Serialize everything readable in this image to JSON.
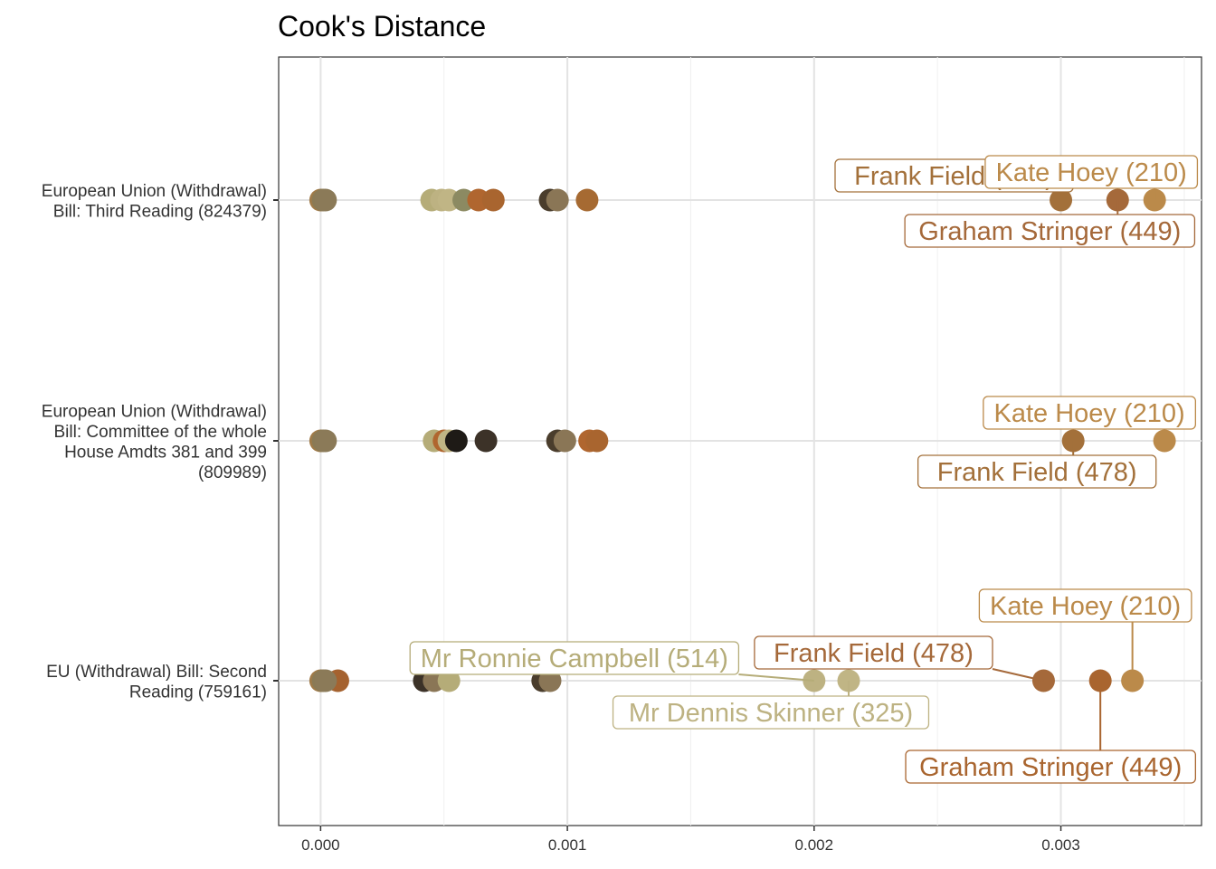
{
  "chart_data": {
    "type": "scatter",
    "title": "Cook's Distance",
    "xlabel": "",
    "ylabel": "",
    "xlim": [
      -0.00017,
      0.00357
    ],
    "x_ticks": [
      "0.000",
      "0.001",
      "0.002",
      "0.003"
    ],
    "x_tick_values": [
      0.0,
      0.001,
      0.002,
      0.003
    ],
    "grid": true,
    "legend": "none",
    "categories": [
      [
        "European Union (Withdrawal)",
        "Bill: Third Reading (824379)"
      ],
      [
        "European Union (Withdrawal)",
        "Bill: Committee of the whole",
        "House Amdts 381 and 399",
        "(809989)"
      ],
      [
        "EU (Withdrawal) Bill: Second",
        "Reading (759161)"
      ]
    ],
    "points": [
      [
        {
          "x": 0.0,
          "color": "#a07a48"
        },
        {
          "x": 1e-05,
          "color": "#8a7a55"
        },
        {
          "x": 2e-05,
          "color": "#8b7a58"
        },
        {
          "x": 0.00045,
          "color": "#b5ac78"
        },
        {
          "x": 0.00049,
          "color": "#bdb282"
        },
        {
          "x": 0.00052,
          "color": "#c0b585"
        },
        {
          "x": 0.00058,
          "color": "#8c8a62"
        },
        {
          "x": 0.00064,
          "color": "#b0662f"
        },
        {
          "x": 0.0007,
          "color": "#a9652f"
        },
        {
          "x": 0.00093,
          "color": "#4a3d2c"
        },
        {
          "x": 0.00096,
          "color": "#8a7656"
        },
        {
          "x": 0.00108,
          "color": "#a66a32"
        },
        {
          "x": 0.003,
          "color": "#a3703a"
        },
        {
          "x": 0.00323,
          "color": "#a5693a"
        },
        {
          "x": 0.00338,
          "color": "#bb8a4a"
        }
      ],
      [
        {
          "x": 0.0,
          "color": "#a07a48"
        },
        {
          "x": 1e-05,
          "color": "#8a7a55"
        },
        {
          "x": 2e-05,
          "color": "#8b7a58"
        },
        {
          "x": 0.00046,
          "color": "#b5ac78"
        },
        {
          "x": 0.0005,
          "color": "#b0662f"
        },
        {
          "x": 0.00052,
          "color": "#c0b585"
        },
        {
          "x": 0.00055,
          "color": "#1e1a16"
        },
        {
          "x": 0.00067,
          "color": "#3c3228"
        },
        {
          "x": 0.00096,
          "color": "#4a3d2c"
        },
        {
          "x": 0.00099,
          "color": "#8a7656"
        },
        {
          "x": 0.00109,
          "color": "#b0662f"
        },
        {
          "x": 0.00112,
          "color": "#a9652f"
        },
        {
          "x": 0.00305,
          "color": "#a3703a"
        },
        {
          "x": 0.00342,
          "color": "#bb8a4a"
        }
      ],
      [
        {
          "x": 0.0,
          "color": "#a07a48"
        },
        {
          "x": 1e-05,
          "color": "#8a7a55"
        },
        {
          "x": 7e-05,
          "color": "#a5622f"
        },
        {
          "x": 2e-05,
          "color": "#8b7a58"
        },
        {
          "x": 0.00042,
          "color": "#3c3228"
        },
        {
          "x": 0.00046,
          "color": "#8a7656"
        },
        {
          "x": 0.00052,
          "color": "#b5ac78"
        },
        {
          "x": 0.0009,
          "color": "#4a3d2c"
        },
        {
          "x": 0.00093,
          "color": "#8a7656"
        },
        {
          "x": 0.002,
          "color": "#bdb282"
        },
        {
          "x": 0.00214,
          "color": "#c0b585"
        },
        {
          "x": 0.00293,
          "color": "#a5693a"
        },
        {
          "x": 0.00316,
          "color": "#a9652f"
        },
        {
          "x": 0.00329,
          "color": "#bb8a4a"
        }
      ]
    ],
    "annotations": [
      {
        "text": "Frank Field (478)",
        "row": 0,
        "x": 0.003,
        "color": "#a3703a"
      },
      {
        "text": "Kate Hoey (210)",
        "row": 0,
        "x": 0.00338,
        "color": "#bb8a4a"
      },
      {
        "text": "Graham Stringer (449)",
        "row": 0,
        "x": 0.00323,
        "color": "#a5693a"
      },
      {
        "text": "Kate Hoey (210)",
        "row": 1,
        "x": 0.00342,
        "color": "#bb8a4a"
      },
      {
        "text": "Frank Field (478)",
        "row": 1,
        "x": 0.00305,
        "color": "#a3703a"
      },
      {
        "text": "Kate Hoey (210)",
        "row": 2,
        "x": 0.00329,
        "color": "#bb8a4a"
      },
      {
        "text": "Frank Field (478)",
        "row": 2,
        "x": 0.00293,
        "color": "#a5693a"
      },
      {
        "text": "Mr Ronnie Campbell (514)",
        "row": 2,
        "x": 0.002,
        "color": "#b5ac78"
      },
      {
        "text": "Mr Dennis Skinner (325)",
        "row": 2,
        "x": 0.00214,
        "color": "#bdb282"
      },
      {
        "text": "Graham Stringer (449)",
        "row": 2,
        "x": 0.00316,
        "color": "#a9652f"
      }
    ]
  }
}
